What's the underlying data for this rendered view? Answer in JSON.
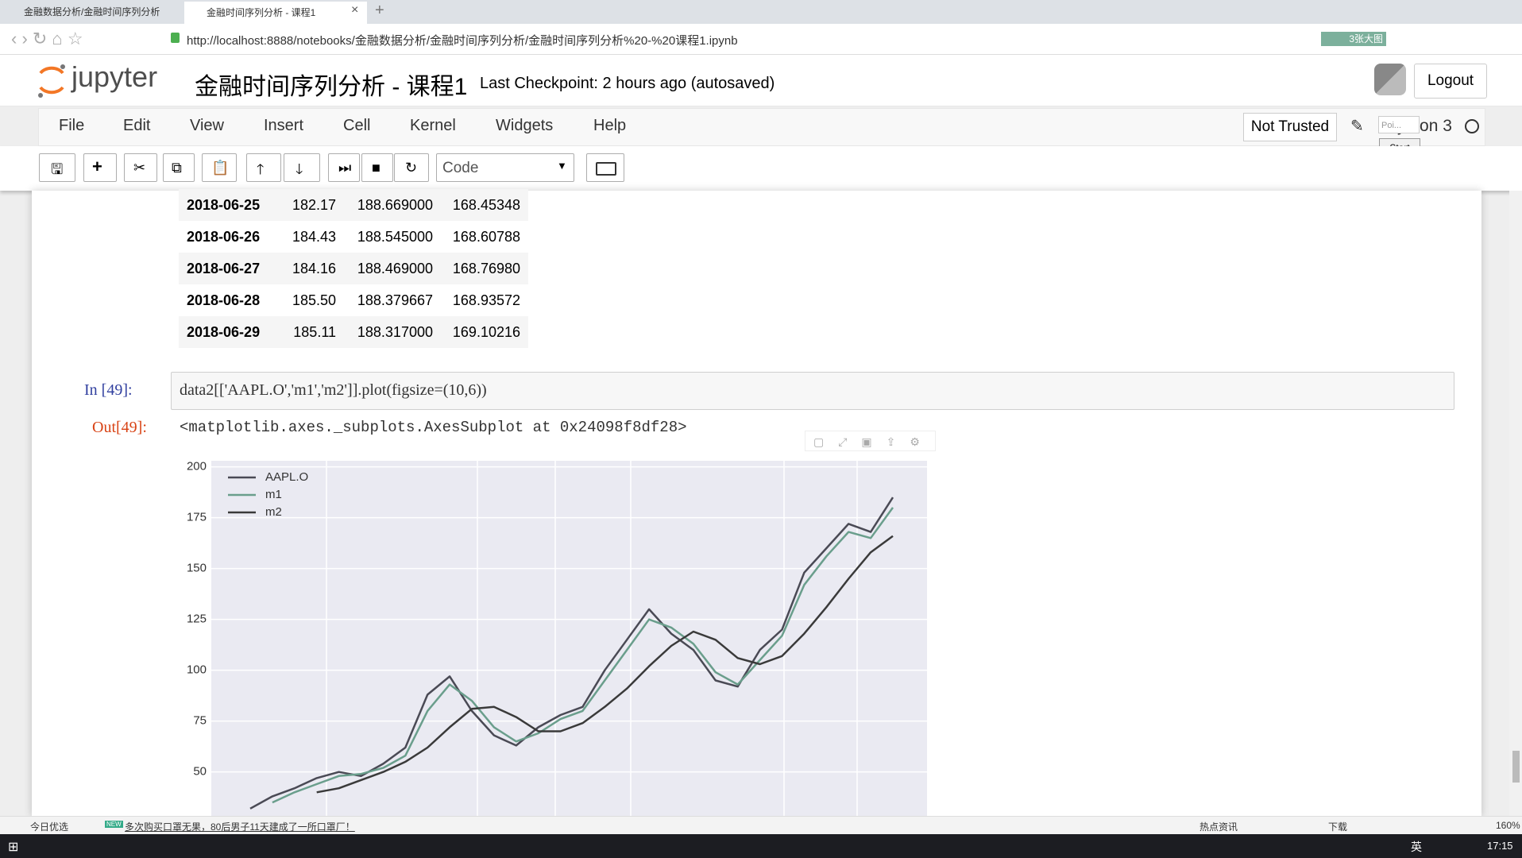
{
  "browser": {
    "tabs": [
      "金融数据分析/金融时间序列分析",
      "金融时间序列分析 - 课程1"
    ],
    "url": "http://localhost:8888/notebooks/金融数据分析/金融时间序列分析/金融时间序列分析%20-%20课程1.ipynb",
    "badge": "3张大图"
  },
  "header": {
    "logo": "jupyter",
    "title": "金融时间序列分析 - 课程1",
    "checkpoint": "Last Checkpoint: 2 hours ago (autosaved)",
    "logout": "Logout"
  },
  "menu": {
    "items": [
      "File",
      "Edit",
      "View",
      "Insert",
      "Cell",
      "Kernel",
      "Widgets",
      "Help"
    ],
    "trusted": "Not Trusted",
    "kernel": "Python 3",
    "tooltip": "Poi...",
    "start": "Start"
  },
  "toolbar": {
    "cell_type": "Code"
  },
  "table": {
    "rows": [
      [
        "2018-06-25",
        "182.17",
        "188.669000",
        "168.45348"
      ],
      [
        "2018-06-26",
        "184.43",
        "188.545000",
        "168.60788"
      ],
      [
        "2018-06-27",
        "184.16",
        "188.469000",
        "168.76980"
      ],
      [
        "2018-06-28",
        "185.50",
        "188.379667",
        "168.93572"
      ],
      [
        "2018-06-29",
        "185.11",
        "188.317000",
        "169.10216"
      ]
    ]
  },
  "cell": {
    "in_prompt": "In  [49]:",
    "code": "data2[['AAPL.O','m1','m2']].plot(figsize=(10,6))",
    "out_prompt": "Out[49]:",
    "output": "<matplotlib.axes._subplots.AxesSubplot at 0x24098f8df28>"
  },
  "chart_data": {
    "type": "line",
    "ylim": [
      28,
      203
    ],
    "yticks": [
      50,
      75,
      100,
      125,
      150,
      175,
      200
    ],
    "grid": true,
    "legend": "upper left",
    "series": [
      {
        "name": "AAPL.O",
        "color": "#4a4a55",
        "values": [
          32,
          38,
          42,
          47,
          50,
          48,
          54,
          62,
          88,
          97,
          80,
          68,
          63,
          72,
          78,
          82,
          100,
          115,
          130,
          118,
          110,
          95,
          92,
          110,
          120,
          148,
          160,
          172,
          168,
          185
        ]
      },
      {
        "name": "m1",
        "color": "#6a9e8c",
        "values": [
          null,
          35,
          40,
          44,
          48,
          49,
          52,
          58,
          80,
          93,
          85,
          72,
          65,
          69,
          76,
          80,
          95,
          110,
          125,
          121,
          113,
          99,
          93,
          105,
          117,
          142,
          156,
          168,
          165,
          180
        ]
      },
      {
        "name": "m2",
        "color": "#3a3a3a",
        "values": [
          null,
          null,
          null,
          40,
          42,
          46,
          50,
          55,
          62,
          72,
          81,
          82,
          77,
          70,
          70,
          74,
          82,
          91,
          102,
          112,
          119,
          115,
          106,
          103,
          107,
          118,
          131,
          145,
          158,
          166
        ]
      }
    ]
  },
  "status": {
    "left": "今日优选",
    "news": "多次购买口罩无果，80后男子11天建成了一所口罩厂！",
    "hot": "热点资讯",
    "download": "下载",
    "zoom": "160%"
  },
  "taskbar": {
    "ime": "英",
    "time": "17:15"
  }
}
